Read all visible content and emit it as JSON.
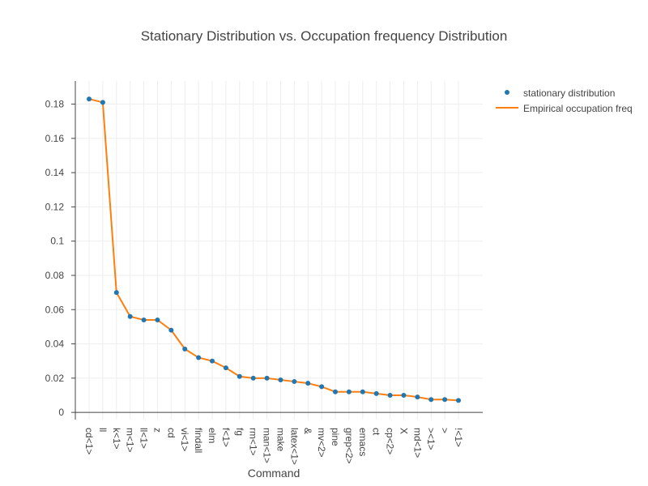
{
  "chart_data": {
    "type": "line",
    "title": "Stationary Distribution vs. Occupation frequency Distribution",
    "xlabel": "Command",
    "ylabel": "",
    "ylim": [
      -0.0042,
      0.1935
    ],
    "yticks": [
      0,
      0.02,
      0.04,
      0.06,
      0.08,
      0.1,
      0.12,
      0.14,
      0.16,
      0.18
    ],
    "categories": [
      "cd<1>",
      "ll",
      "k<1>",
      "m<1>",
      "ll<1>",
      "z",
      "cd",
      "vi<1>",
      "findall",
      "elm",
      "f<1>",
      "fg",
      "rm<1>",
      "man<1>",
      "make",
      "latex<1>",
      "&",
      "mv<2>",
      "pine",
      "grep<2>",
      "emacs",
      "ct",
      "cp<2>",
      "X",
      "md<1>",
      "><1>",
      ">",
      "!<1>"
    ],
    "series": [
      {
        "name": "stationary distribution",
        "mode": "markers",
        "color": "#1f77b4",
        "values": [
          0.183,
          0.181,
          0.07,
          0.056,
          0.054,
          0.054,
          0.048,
          0.037,
          0.032,
          0.03,
          0.026,
          0.021,
          0.02,
          0.02,
          0.019,
          0.018,
          0.017,
          0.015,
          0.012,
          0.012,
          0.012,
          0.011,
          0.01,
          0.01,
          0.009,
          0.0075,
          0.0075,
          0.007
        ]
      },
      {
        "name": "Empirical occupation freq",
        "mode": "lines",
        "color": "#ff7f0e",
        "values": [
          0.183,
          0.181,
          0.07,
          0.056,
          0.054,
          0.054,
          0.048,
          0.037,
          0.032,
          0.03,
          0.026,
          0.021,
          0.02,
          0.02,
          0.019,
          0.018,
          0.017,
          0.015,
          0.012,
          0.012,
          0.012,
          0.011,
          0.01,
          0.01,
          0.009,
          0.0075,
          0.0075,
          0.007
        ]
      }
    ],
    "grid": true,
    "legend_position": "top-right"
  }
}
